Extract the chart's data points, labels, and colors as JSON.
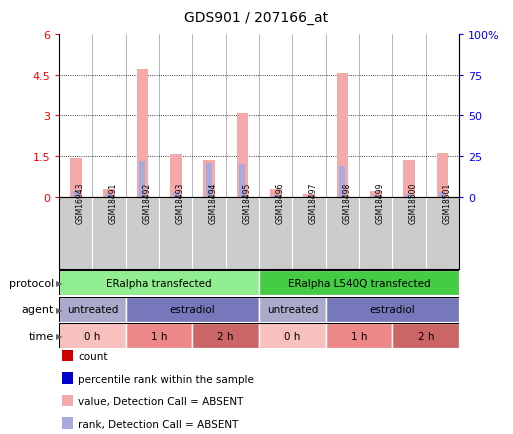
{
  "title": "GDS901 / 207166_at",
  "samples": [
    "GSM16943",
    "GSM18491",
    "GSM18492",
    "GSM18493",
    "GSM18494",
    "GSM18495",
    "GSM18496",
    "GSM18497",
    "GSM18498",
    "GSM18499",
    "GSM18500",
    "GSM18501"
  ],
  "values": [
    1.42,
    0.28,
    4.72,
    1.58,
    1.35,
    3.08,
    0.3,
    0.12,
    4.57,
    0.22,
    1.35,
    1.62
  ],
  "ranks_pct": [
    3.5,
    1.8,
    22.0,
    3.0,
    20.8,
    20.4,
    1.3,
    0.8,
    19.2,
    1.2,
    2.0,
    3.3
  ],
  "ylim_left": [
    0,
    6
  ],
  "ylim_right": [
    0,
    100
  ],
  "yticks_left": [
    0,
    1.5,
    3.0,
    4.5,
    6.0
  ],
  "yticks_left_labels": [
    "0",
    "1.5",
    "3",
    "4.5",
    "6"
  ],
  "yticks_right": [
    0,
    25,
    50,
    75,
    100
  ],
  "yticks_right_labels": [
    "0",
    "25",
    "50",
    "75",
    "100%"
  ],
  "bar_color_value": "#F4AAAA",
  "bar_color_rank": "#AAAADD",
  "protocol_groups": [
    {
      "label": "ERalpha transfected",
      "start": 0,
      "end": 5,
      "color": "#90EE90"
    },
    {
      "label": "ERalpha L540Q transfected",
      "start": 6,
      "end": 11,
      "color": "#44CC44"
    }
  ],
  "agent_groups": [
    {
      "label": "untreated",
      "start": 0,
      "end": 1,
      "color": "#AAAACC"
    },
    {
      "label": "estradiol",
      "start": 2,
      "end": 5,
      "color": "#7777BB"
    },
    {
      "label": "untreated",
      "start": 6,
      "end": 7,
      "color": "#AAAACC"
    },
    {
      "label": "estradiol",
      "start": 8,
      "end": 11,
      "color": "#7777BB"
    }
  ],
  "time_groups": [
    {
      "label": "0 h",
      "start": 0,
      "end": 1,
      "color": "#F9C0C0"
    },
    {
      "label": "1 h",
      "start": 2,
      "end": 3,
      "color": "#EE8888"
    },
    {
      "label": "2 h",
      "start": 4,
      "end": 5,
      "color": "#CC6666"
    },
    {
      "label": "0 h",
      "start": 6,
      "end": 7,
      "color": "#F9C0C0"
    },
    {
      "label": "1 h",
      "start": 8,
      "end": 9,
      "color": "#EE8888"
    },
    {
      "label": "2 h",
      "start": 10,
      "end": 11,
      "color": "#CC6666"
    }
  ],
  "legend_items": [
    {
      "label": "count",
      "color": "#CC0000"
    },
    {
      "label": "percentile rank within the sample",
      "color": "#0000CC"
    },
    {
      "label": "value, Detection Call = ABSENT",
      "color": "#F4AAAA"
    },
    {
      "label": "rank, Detection Call = ABSENT",
      "color": "#AAAADD"
    }
  ],
  "sample_bg_color": "#CCCCCC",
  "divider_color": "#999999"
}
